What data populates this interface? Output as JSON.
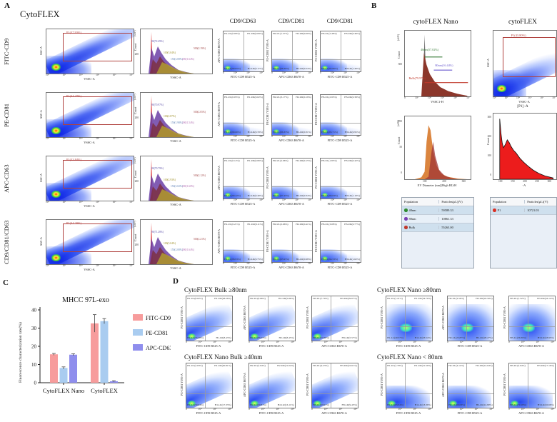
{
  "panel_a": {
    "label": "A",
    "title": "CytoFLEX",
    "col_headers": [
      "CD9/CD63",
      "CD9/CD81",
      "CD9/CD81"
    ],
    "big_scatter": {
      "xlabel": "VSSC-A",
      "ylabel": "SSC-A",
      "xticks": [
        "10²",
        "10³",
        "10⁴",
        "10⁵",
        "10⁶",
        "10⁷"
      ]
    },
    "hist": {
      "xlabel": "VSSC-A",
      "ylabel": "Count",
      "yunit": "(x10⁵)",
      "ytick": "200"
    },
    "small_axes": [
      {
        "x": "FITC-CD9 B525-A",
        "y": "APC-CD63 R670-A"
      },
      {
        "x": "APC-CD63 R670-A",
        "y": "PE-CD81 Y595-A"
      },
      {
        "x": "FITC-CD9 B525-A",
        "y": "PE-CD81 Y595-A"
      }
    ],
    "small_xticks": [
      "0",
      "10⁴",
      "10⁵",
      "10⁶"
    ],
    "rows": [
      {
        "name": "FITC-CD9",
        "gate": "P1(47.93%)",
        "hist_gates": [
          {
            "t": "80(72.49%)",
            "c": "#5b4ea8"
          },
          {
            "t": "100(3.04%)",
            "c": "#9a8b1f"
          },
          {
            "t": "150(2.08%)",
            "c": "#5b7fb4"
          },
          {
            "t": "200(1.64%)",
            "c": "#b06ab0"
          },
          {
            "t": "500(2.19%)",
            "c": "#a04545"
          }
        ],
        "quads": [
          {
            "ul": "H1-UL(0.09%)",
            "ur": "H1-UR(0.09%)",
            "ll": "H1-LL(99.65%)",
            "lr": "H1-LR(0.17%)"
          },
          {
            "ul": "H2-UL(1.37%)",
            "ur": "H2-UR(0.09%)",
            "ll": "H2-LL(98.30%)",
            "lr": "H2-LR(0.24%)"
          },
          {
            "ul": "H3-UL(2.48%)",
            "ur": "H3-UR(0.46%)",
            "ll": "H3-LL(95.66%)",
            "lr": "H3-LR(1.40%)"
          }
        ]
      },
      {
        "name": "PE-CD81",
        "gate": "P1(44.47%)",
        "hist_gates": [
          {
            "t": "80(70.97%)",
            "c": "#5b4ea8"
          },
          {
            "t": "100(2.87%)",
            "c": "#9a8b1f"
          },
          {
            "t": "150(1.98%)",
            "c": "#5b7fb4"
          },
          {
            "t": "200(1.54%)",
            "c": "#b06ab0"
          },
          {
            "t": "500(2.05%)",
            "c": "#a04545"
          }
        ],
        "quads": [
          {
            "ul": "H1-UL(0.05%)",
            "ur": "H1-UR(0.02%)",
            "ll": "H1-LL(99.60%)",
            "lr": "H1-LR(0.33%)"
          },
          {
            "ul": "H2-UL(3.17%)",
            "ur": "H2-UR(0.19%)",
            "ll": "H2-LL(96.33%)",
            "lr": "H2-LR(0.31%)"
          },
          {
            "ul": "H3-UL(2.95%)",
            "ur": "H3-UR(0.39%)",
            "ll": "H3-LL(95.71%)",
            "lr": "H3-LR(0.95%)"
          }
        ]
      },
      {
        "name": "APC-CD63",
        "gate": "P1(43.84%)",
        "hist_gates": [
          {
            "t": "80(70.79%)",
            "c": "#5b4ea8"
          },
          {
            "t": "100(2.93%)",
            "c": "#9a8b1f"
          },
          {
            "t": "150(2.02%)",
            "c": "#5b7fb4"
          },
          {
            "t": "200(1.60%)",
            "c": "#b06ab0"
          },
          {
            "t": "500(2.12%)",
            "c": "#a04545"
          }
        ],
        "quads": [
          {
            "ul": "H1-UL(0.12%)",
            "ur": "H1-UR(0.06%)",
            "ll": "H1-LL(99.42%)",
            "lr": "H1-LR(0.40%)"
          },
          {
            "ul": "H2-UL(2.06%)",
            "ur": "H2-UR(0.15%)",
            "ll": "H2-LL(97.45%)",
            "lr": "H2-LR(0.34%)"
          },
          {
            "ul": "H3-UL(1.85%)",
            "ur": "H3-UR(0.42%)",
            "ll": "H3-LL(96.63%)",
            "lr": "H3-LR(1.10%)"
          }
        ]
      },
      {
        "name": "CD9/CD81/CD63",
        "gate": "P1(44.20%)",
        "hist_gates": [
          {
            "t": "80(71.28%)",
            "c": "#5b4ea8"
          },
          {
            "t": "100(3.04%)",
            "c": "#9a8b1f"
          },
          {
            "t": "150(2.08%)",
            "c": "#5b7fb4"
          },
          {
            "t": "200(1.64%)",
            "c": "#b06ab0"
          },
          {
            "t": "500(2.21%)",
            "c": "#a04545"
          }
        ],
        "quads": [
          {
            "ul": "H1-UL(0.21%)",
            "ur": "H1-UR(0.11%)",
            "ll": "H1-LL(98.93%)",
            "lr": "H1-LR(0.75%)"
          },
          {
            "ul": "H2-UL(2.66%)",
            "ur": "H2-UR(0.41%)",
            "ll": "H2-LL(95.95%)",
            "lr": "H2-LR(0.98%)"
          },
          {
            "ul": "H3-UL(3.08%)",
            "ur": "H3-UR(0.77%)",
            "ll": "H3-LL(94.53%)",
            "lr": "H3-LR(1.62%)"
          }
        ]
      }
    ]
  },
  "panel_b": {
    "label": "B",
    "nano": {
      "title": "cytoFLEX Nano",
      "ylabel": "Count",
      "yunit": "(x10⁵)",
      "ytick": "500",
      "xlabel": "VSSC1-H",
      "xticks": [
        "0",
        "10³",
        "10⁴",
        "10⁵",
        "10⁶",
        "10⁷"
      ],
      "gates": [
        {
          "t": "40nm(57.02%)",
          "c": "#3a7d3a"
        },
        {
          "t": "80nm(16.44%)",
          "c": "#6a5acd"
        },
        {
          "t": "Bulk(79.97%)",
          "c": "#c0392b"
        }
      ]
    },
    "flex": {
      "title": "cytoFLEX",
      "gate": "P1(43.80%)",
      "ylabel": "SSC-A",
      "xlabel": "VSSC-A",
      "xticks": [
        "10²",
        "10³",
        "10⁴",
        "10⁵",
        "10⁶",
        "10⁷"
      ]
    },
    "ev_hist": {
      "ylabel": "Count",
      "yunit": "(x10⁵)",
      "yticks": [
        "100",
        "50",
        "0"
      ],
      "xlabel": "EV Diameter (nm)[High RI]-H",
      "xticks": [
        "100",
        "200",
        "300"
      ]
    },
    "p1_hist": {
      "title": "[P1] -A",
      "ylabel": "Count",
      "yticks": [
        "300",
        "200",
        "100",
        "0"
      ],
      "xlabel": "-A",
      "xticks": [
        "100",
        "150",
        "200",
        "250",
        "300"
      ]
    },
    "table_left": {
      "headers": [
        "Population",
        "Particles(μL)(V)"
      ],
      "rows": [
        {
          "dot": "#2e8b2e",
          "name": "40nm",
          "value": "59589.33"
        },
        {
          "dot": "#7a3fb5",
          "name": "80nm",
          "value": "10861.33"
        },
        {
          "dot": "#c0392b",
          "name": "Bulk",
          "value": "55263.00"
        }
      ]
    },
    "table_right": {
      "headers": [
        "Population",
        "Particles(μL)(V)"
      ],
      "rows": [
        {
          "dot": "#d93025",
          "name": "P1",
          "value": "10721.03"
        }
      ]
    }
  },
  "panel_c": {
    "label": "C"
  },
  "chart_data": {
    "type": "bar",
    "title": "MHCC 97L-exo",
    "ylabel": "Fluorescence characterization rate(%)",
    "ylim": [
      0,
      40
    ],
    "yticks": [
      0,
      10,
      20,
      30,
      40
    ],
    "categories": [
      "CytoFLEX Nano",
      "CytoFLEX"
    ],
    "series": [
      {
        "name": "FITC-CD9",
        "color": "#F79C9C",
        "values": [
          15.6,
          32.6
        ],
        "errors": [
          0.5,
          4.8
        ]
      },
      {
        "name": "PE-CD81",
        "color": "#A9CCF0",
        "values": [
          8.1,
          33.8
        ],
        "errors": [
          0.6,
          1.4
        ]
      },
      {
        "name": "APC-CD63",
        "color": "#8F8EED",
        "values": [
          15.4,
          0.8
        ],
        "errors": [
          0.5,
          0.3
        ]
      }
    ],
    "legend_position": "right",
    "grid": false
  },
  "panel_d": {
    "label": "D",
    "plot_axes": [
      {
        "x": "FITC-CD9 B525-A",
        "y": "PE-CD81 Y595-A"
      },
      {
        "x": "FITC-CD9 B525-A",
        "y": "APC-CD63 R670-A"
      },
      {
        "x": "APC-CD63 R670-A",
        "y": "PE-CD81 Y595-A"
      }
    ],
    "xticks": [
      "0",
      "10⁴",
      "10⁵",
      "10⁶"
    ],
    "groups": [
      {
        "title": "CytoFLEX Bulk ≥80nm",
        "style": "bulk",
        "quads": [
          {
            "ul": "H1-UL(8.02%)",
            "ur": "H1-UR(28.28%)",
            "ll": "H1-LL(55.28%)",
            "lr": "H1-LR(8.43%)"
          },
          {
            "ul": "H2-UL(0.66%)",
            "ur": "H2-UR(5.86%)",
            "ll": "H2-LL(85.03%)",
            "lr": "H2-LR(8.45%)"
          },
          {
            "ul": "H3-UL(7.70%)",
            "ur": "H3-UR(29.07%)",
            "ll": "H3-LL(57.66%)",
            "lr": "H3-LR(5.57%)"
          }
        ]
      },
      {
        "title": "CytoFLEX Nano ≥80nm",
        "style": "nanohi",
        "quads": [
          {
            "ul": "H1-UL(1.21%)",
            "ur": "H1-UR(34.70%)",
            "ll": "H1-LL(40.57%)",
            "lr": "H1-LR(23.54%)"
          },
          {
            "ul": "H2-UL(2.59%)",
            "ur": "H2-UR(43.59%)",
            "ll": "H2-LL(25.87%)",
            "lr": "H2-LR(28.27%)"
          },
          {
            "ul": "H3-UL(1.52%)",
            "ur": "H3-UR(43.14%)",
            "ll": "H3-LL(36.39%)",
            "lr": "H3-LR(18.95%)"
          }
        ]
      },
      {
        "title": "CytoFLEX Nano Bulk ≥40nm",
        "style": "bulk",
        "quads": [
          {
            "ul": "H1-UL(2.63%)",
            "ur": "H1-UR(20.81%)",
            "ll": "H1-LL(59.64%)",
            "lr": "H1-LR(17.33%)"
          },
          {
            "ul": "H2-UL(2.04%)",
            "ur": "H2-UR(21.04%)",
            "ll": "H2-LL(60.81%)",
            "lr": "H2-LR(16.11%)"
          },
          {
            "ul": "H3-UL(4.23%)",
            "ur": "H3-UR(22.61%)",
            "ll": "H3-LL(63.91%)",
            "lr": "H3-LR(9.43%)"
          }
        ]
      },
      {
        "title": "CytoFLEX Nano < 80nm",
        "style": "nanolo",
        "quads": [
          {
            "ul": "H1-UL(1.79%)",
            "ur": "H1-UR(21.50%)",
            "ll": "H1-LL(63.34%)",
            "lr": "H1-LR(13.39%)"
          },
          {
            "ul": "H2-UL(4.12%)",
            "ur": "H2-UR(14.04%)",
            "ll": "H2-LL(69.03%)",
            "lr": "H2-LR(12.80%)"
          },
          {
            "ul": "H3-UL(2.04%)",
            "ur": "H3-UR(17.10%)",
            "ll": "H3-LL(70.18%)",
            "lr": "H3-LR(10.69%)"
          }
        ]
      }
    ]
  }
}
